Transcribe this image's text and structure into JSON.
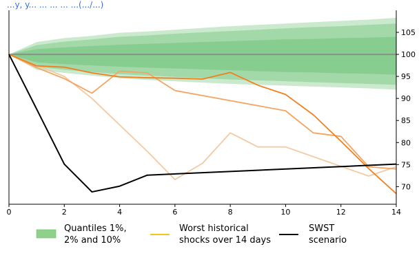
{
  "top_caption": "...y, y... ... ... ... ...(.../...)",
  "chart_data": {
    "type": "line",
    "xlim": [
      0,
      14
    ],
    "ylim": [
      66,
      110
    ],
    "x_ticks": [
      0,
      2,
      4,
      6,
      8,
      10,
      12,
      14
    ],
    "y_ticks": [
      70,
      75,
      80,
      85,
      90,
      95,
      100,
      105
    ],
    "y_axis_side": "right",
    "grid": false,
    "legend_position": "bottom",
    "quantile_bands": {
      "x": [
        0,
        1,
        2,
        3,
        4,
        5,
        6,
        7,
        8,
        9,
        10,
        11,
        12,
        13,
        14
      ],
      "bands": [
        {
          "lower": [
            100,
            96.5,
            95.8,
            95.2,
            94.6,
            94.2,
            93.9,
            93.6,
            93.3,
            93.1,
            92.9,
            92.7,
            92.5,
            92.3,
            92.0
          ],
          "upper": [
            100,
            102.8,
            103.7,
            104.2,
            104.9,
            105.2,
            105.6,
            106.0,
            106.4,
            106.7,
            107.0,
            107.3,
            107.6,
            107.9,
            108.3
          ]
        },
        {
          "lower": [
            100,
            97.2,
            96.5,
            96.0,
            95.5,
            95.2,
            94.9,
            94.6,
            94.3,
            94.1,
            93.9,
            93.7,
            93.5,
            93.3,
            93.1
          ],
          "upper": [
            100,
            102.1,
            102.9,
            103.4,
            104.0,
            104.3,
            104.7,
            105.0,
            105.3,
            105.6,
            105.9,
            106.2,
            106.4,
            106.7,
            107.0
          ]
        },
        {
          "lower": [
            100,
            98.2,
            97.8,
            97.5,
            97.2,
            97.0,
            96.8,
            96.6,
            96.4,
            96.2,
            96.0,
            95.9,
            95.7,
            95.6,
            95.4
          ],
          "upper": [
            100,
            101.2,
            101.6,
            101.9,
            102.2,
            102.4,
            102.6,
            102.8,
            103.0,
            103.2,
            103.4,
            103.5,
            103.7,
            103.8,
            104.0
          ]
        }
      ],
      "band_color": "#41b04a",
      "median": [
        100,
        100,
        100,
        100,
        100,
        100,
        100,
        100,
        100,
        100,
        100,
        100,
        100,
        100,
        100
      ],
      "median_color": "#8a8f8a"
    },
    "series": [
      {
        "color": "#f5c9a0",
        "x": [
          0,
          2,
          3,
          4,
          5,
          6,
          7,
          8,
          9,
          10,
          13,
          14
        ],
        "y": [
          100,
          95.0,
          90.0,
          84.0,
          78.0,
          71.6,
          75.3,
          82.2,
          79.0,
          79.0,
          72.4,
          74.5
        ]
      },
      {
        "color": "#f4a460",
        "x": [
          0,
          1,
          2,
          3,
          4,
          5,
          6,
          8,
          10,
          11,
          12,
          13,
          14
        ],
        "y": [
          100,
          97.0,
          94.5,
          91.2,
          96.2,
          95.8,
          91.8,
          89.5,
          87.2,
          82.2,
          81.4,
          74.5,
          74.0
        ]
      },
      {
        "color": "#f07f1d",
        "x": [
          0,
          1,
          2,
          3,
          4,
          5,
          6,
          7,
          8,
          9,
          10,
          11,
          12,
          13,
          14
        ],
        "y": [
          100,
          97.4,
          97.1,
          95.8,
          94.9,
          94.7,
          94.6,
          94.4,
          95.9,
          93.0,
          90.9,
          86.3,
          80.3,
          74.1,
          68.4
        ]
      },
      {
        "color": "#000000",
        "x": [
          0,
          1,
          2,
          3,
          4,
          5,
          14
        ],
        "y": [
          100,
          87.6,
          75.1,
          68.8,
          70.1,
          72.6,
          75.1
        ]
      }
    ],
    "legend": [
      {
        "label": "Quantiles 1%,\n2% and 10%",
        "line1": "Quantiles 1%,",
        "line2": "2% and 10%",
        "swatch": "patch",
        "color": "#8fd18a"
      },
      {
        "label": "Worst historical\nshocks over 14 days",
        "line1": "Worst historical",
        "line2": "shocks over 14 days",
        "swatch": "line",
        "color": "#f5c518"
      },
      {
        "label": "SWST\nscenario",
        "line1": "SWST",
        "line2": "scenario",
        "swatch": "line",
        "color": "#000000"
      }
    ]
  }
}
